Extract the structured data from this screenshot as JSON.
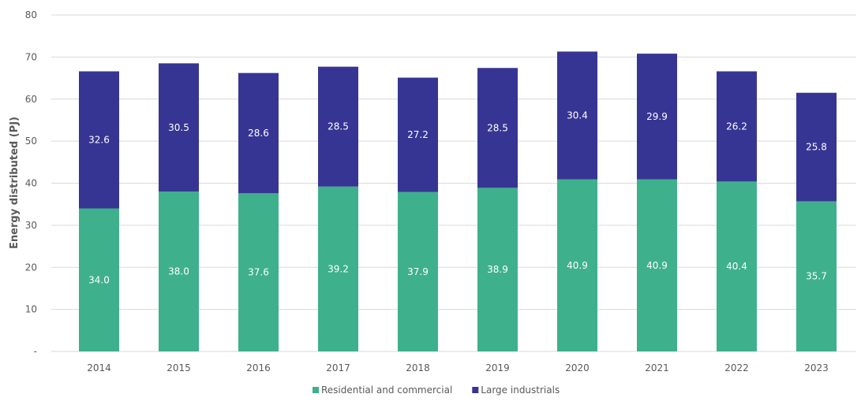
{
  "chart_data": {
    "type": "bar",
    "stacked": true,
    "categories": [
      "2014",
      "2015",
      "2016",
      "2017",
      "2018",
      "2019",
      "2020",
      "2021",
      "2022",
      "2023"
    ],
    "series": [
      {
        "name": "Residential and commercial",
        "color": "#3eb08c",
        "values": [
          34.0,
          38.0,
          37.6,
          39.2,
          37.9,
          38.9,
          40.9,
          40.9,
          40.4,
          35.7
        ]
      },
      {
        "name": "Large industrials",
        "color": "#373593",
        "values": [
          32.6,
          30.5,
          28.6,
          28.5,
          27.2,
          28.5,
          30.4,
          29.9,
          26.2,
          25.8
        ]
      }
    ],
    "data_labels": [
      [
        "34.0",
        "38.0",
        "37.6",
        "39.2",
        "37.9",
        "38.9",
        "40.9",
        "40.9",
        "40.4",
        "35.7"
      ],
      [
        "32.6",
        "30.5",
        "28.6",
        "28.5",
        "27.2",
        "28.5",
        "30.4",
        "29.9",
        "26.2",
        "25.8"
      ]
    ],
    "title": "",
    "xlabel": "",
    "ylabel": "Energy distributed (PJ)",
    "ylim": [
      0,
      80
    ],
    "yticks": [
      0,
      10,
      20,
      30,
      40,
      50,
      60,
      70,
      80
    ],
    "ytick_labels": [
      "-",
      "10",
      "20",
      "30",
      "40",
      "50",
      "60",
      "70",
      "80"
    ],
    "grid": true,
    "legend_position": "bottom"
  }
}
